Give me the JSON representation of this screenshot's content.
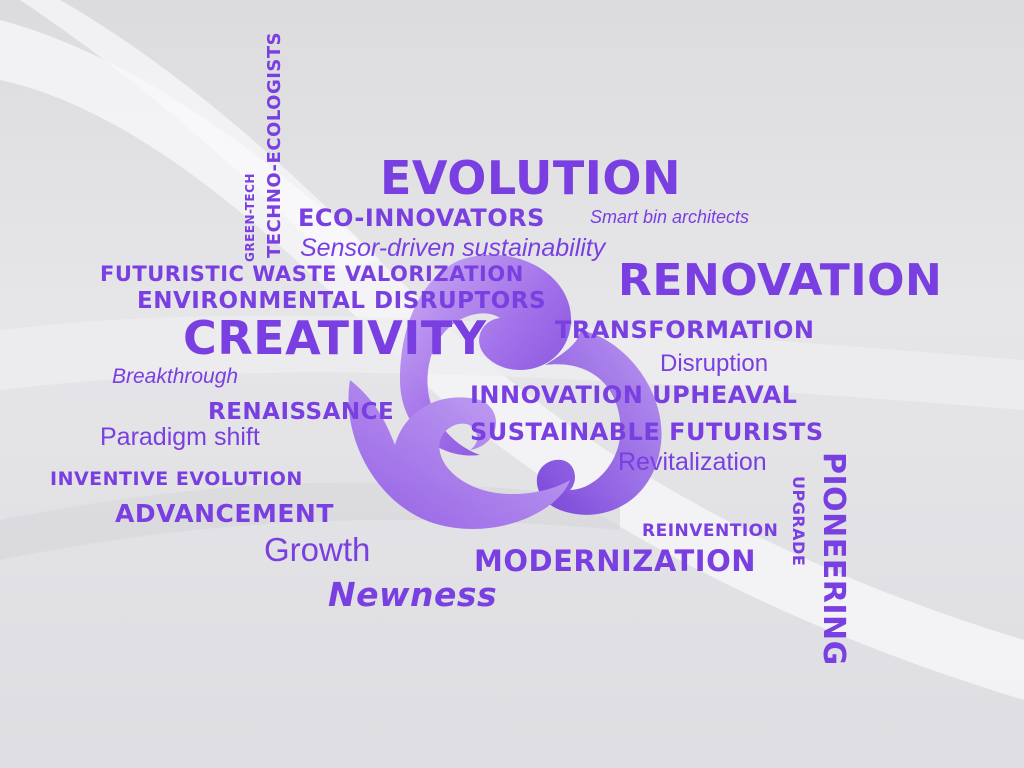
{
  "words": {
    "evolution": "EVOLUTION",
    "eco_innovators": "ECO-INNOVATORS",
    "smart_bin": "Smart bin architects",
    "sensor": "Sensor-driven sustainability",
    "futuristic": "FUTURISTIC WASTE VALORIZATION",
    "environmental": "ENVIRONMENTAL DISRUPTORS",
    "renovation": "RENOVATION",
    "creativity": "CREATIVITY",
    "transformation": "TRANSFORMATION",
    "disruption": "Disruption",
    "breakthrough": "Breakthrough",
    "renaissance": "RENAISSANCE",
    "innovation_upheaval": "INNOVATION UPHEAVAL",
    "paradigm": "Paradigm shift",
    "sustainable": "SUSTAINABLE FUTURISTS",
    "revitalization": "Revitalization",
    "inventive": "INVENTIVE EVOLUTION",
    "advancement": "ADVANCEMENT",
    "reinvention": "REINVENTION",
    "growth": "Growth",
    "modernization": "MODERNIZATION",
    "newness": "Newness",
    "green_tech": "GREEN-TECH",
    "techno": "TECHNO-ECOLOGISTS",
    "pioneering": "PIONEERING",
    "upgrade": "UPGRADE"
  },
  "colors": {
    "accent": "#7a3fe0",
    "background": "#e2e2e5"
  }
}
